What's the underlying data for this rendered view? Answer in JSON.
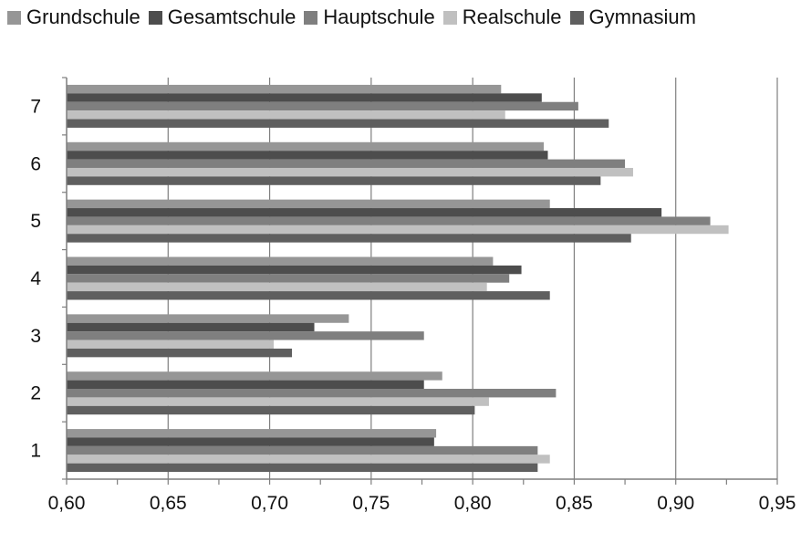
{
  "chart_data": {
    "type": "bar",
    "orientation": "horizontal",
    "title": "",
    "xlabel": "",
    "ylabel": "",
    "categories": [
      "1",
      "2",
      "3",
      "4",
      "5",
      "6",
      "7"
    ],
    "xlim": [
      0.6,
      0.95
    ],
    "x_ticks": [
      "0,60",
      "0,65",
      "0,70",
      "0,75",
      "0,80",
      "0,85",
      "0,90",
      "0,95"
    ],
    "x_tick_values": [
      0.6,
      0.65,
      0.7,
      0.75,
      0.8,
      0.85,
      0.9,
      0.95
    ],
    "grid": "vertical",
    "legend_position": "top",
    "series": [
      {
        "name": "Grundschule",
        "color": "#969696",
        "values": [
          0.782,
          0.785,
          0.739,
          0.81,
          0.838,
          0.835,
          0.814
        ]
      },
      {
        "name": "Gesamtschule",
        "color": "#4d4d4d",
        "values": [
          0.781,
          0.776,
          0.722,
          0.824,
          0.893,
          0.837,
          0.834
        ]
      },
      {
        "name": "Hauptschule",
        "color": "#7f7f7f",
        "values": [
          0.832,
          0.841,
          0.776,
          0.818,
          0.917,
          0.875,
          0.852
        ]
      },
      {
        "name": "Realschule",
        "color": "#c0c0c0",
        "values": [
          0.838,
          0.808,
          0.702,
          0.807,
          0.926,
          0.879,
          0.816
        ]
      },
      {
        "name": "Gymnasium",
        "color": "#5f5f5f",
        "values": [
          0.832,
          0.801,
          0.711,
          0.838,
          0.878,
          0.863,
          0.867
        ]
      }
    ]
  }
}
